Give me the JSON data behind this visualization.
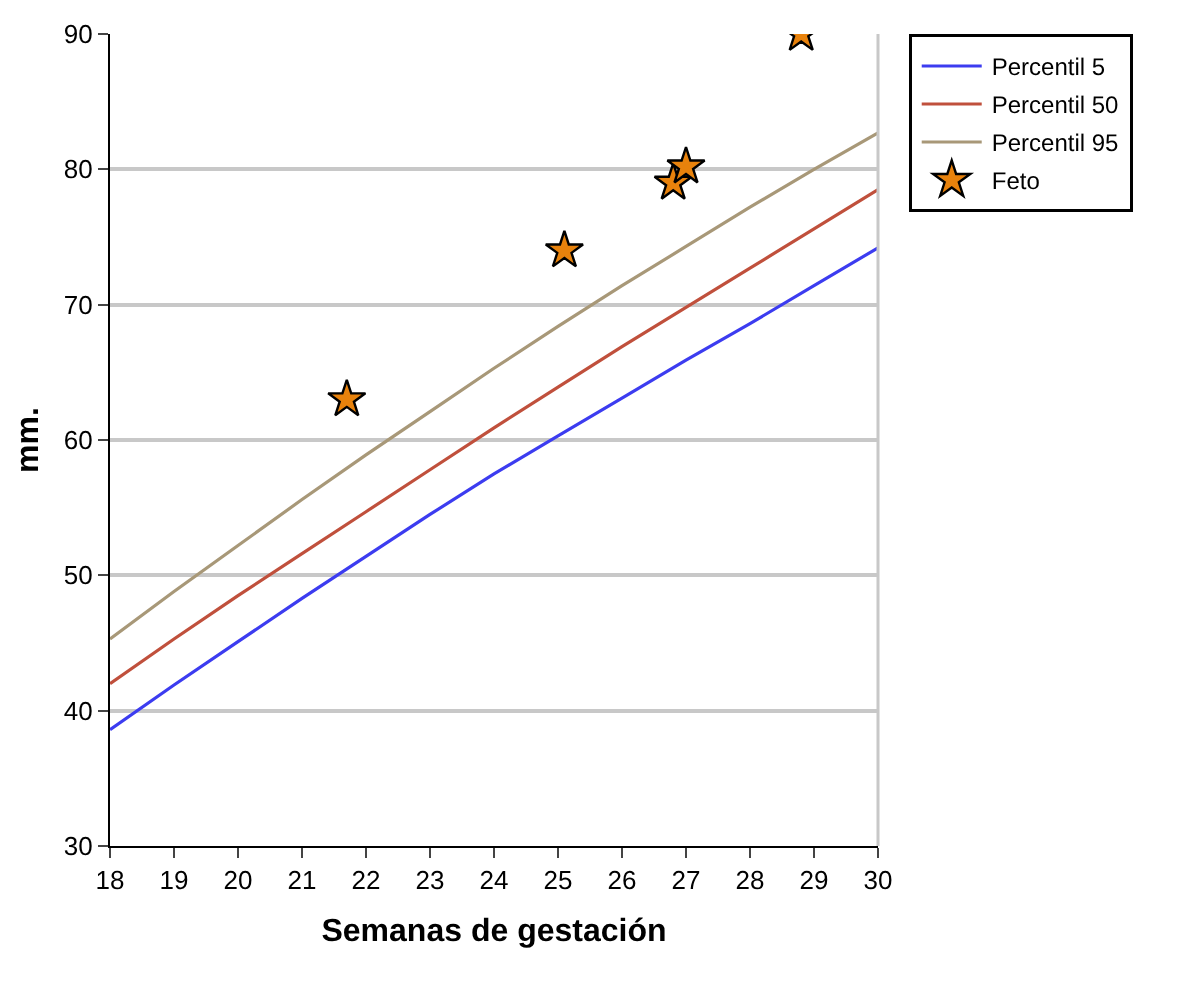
{
  "chart_data": {
    "type": "line",
    "xlabel": "Semanas de gestación",
    "ylabel": "mm.",
    "x": [
      18,
      19,
      20,
      21,
      22,
      23,
      24,
      25,
      26,
      27,
      28,
      29,
      30
    ],
    "series": [
      {
        "name": "Percentil 5",
        "color": "#3c3cf0",
        "values": [
          38.6,
          41.9,
          45.1,
          48.3,
          51.4,
          54.5,
          57.5,
          60.3,
          63.1,
          65.9,
          68.6,
          71.4,
          74.2
        ]
      },
      {
        "name": "Percentil 50",
        "color": "#c0503c",
        "values": [
          42,
          45.3,
          48.5,
          51.6,
          54.7,
          57.8,
          60.9,
          63.9,
          66.9,
          69.8,
          72.7,
          75.6,
          78.5
        ]
      },
      {
        "name": "Percentil 95",
        "color": "#a89878",
        "values": [
          45.3,
          48.8,
          52.2,
          55.6,
          58.9,
          62.1,
          65.3,
          68.4,
          71.4,
          74.3,
          77.2,
          80.0,
          82.7
        ]
      },
      {
        "name": "Feto",
        "type": "scatter",
        "marker": "star",
        "color": "#e8820c",
        "x": [
          21.7,
          25.1,
          26.8,
          27,
          28.8
        ],
        "values": [
          63,
          74,
          79,
          80.2,
          90
        ]
      }
    ],
    "xlim": [
      18,
      30
    ],
    "xticks": [
      18,
      19,
      20,
      21,
      22,
      23,
      24,
      25,
      26,
      27,
      28,
      29,
      30
    ],
    "ylim": [
      30,
      90
    ],
    "yticks": [
      30,
      40,
      50,
      60,
      70,
      80,
      90
    ],
    "grid": "y",
    "legend": "top right",
    "marker": "none",
    "line_style": "solid"
  }
}
